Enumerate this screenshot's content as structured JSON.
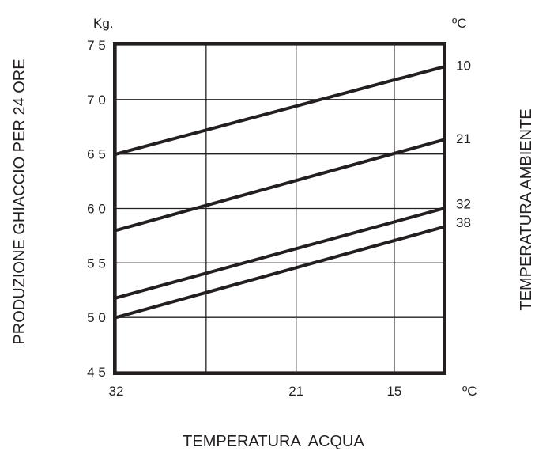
{
  "chart_data": {
    "type": "line",
    "title": "",
    "ylabel": "PRODUZIONE GHIACCIO PER 24 ORE",
    "y_unit": "Kg.",
    "xlabel": "TEMPERATURA  ACQUA",
    "x_unit": "ºC",
    "right_label": "TEMPERATURA AMBIENTE",
    "right_unit": "ºC",
    "ylim": [
      45,
      75
    ],
    "y_ticks": [
      "7 5",
      "7 0",
      "6 5",
      "6 0",
      "5 5",
      "5 0",
      "4 5"
    ],
    "y_tick_values": [
      75,
      70,
      65,
      60,
      55,
      50,
      45
    ],
    "xlim": [
      32,
      12
    ],
    "x_ticks": [
      "32",
      "21",
      "15"
    ],
    "x_tick_values": [
      32,
      21,
      15
    ],
    "x_grid_values": [
      32,
      26.5,
      21,
      15,
      12
    ],
    "y_grid_values": [
      45,
      50,
      55,
      60,
      65,
      70,
      75
    ],
    "grid": true,
    "series": [
      {
        "name": "10",
        "x": [
          32,
          12
        ],
        "y": [
          65,
          73
        ]
      },
      {
        "name": "21",
        "x": [
          32,
          12
        ],
        "y": [
          58,
          66.3
        ]
      },
      {
        "name": "32",
        "x": [
          32,
          12
        ],
        "y": [
          51.8,
          60
        ]
      },
      {
        "name": "38",
        "x": [
          32,
          12
        ],
        "y": [
          50,
          58.3
        ]
      }
    ]
  }
}
